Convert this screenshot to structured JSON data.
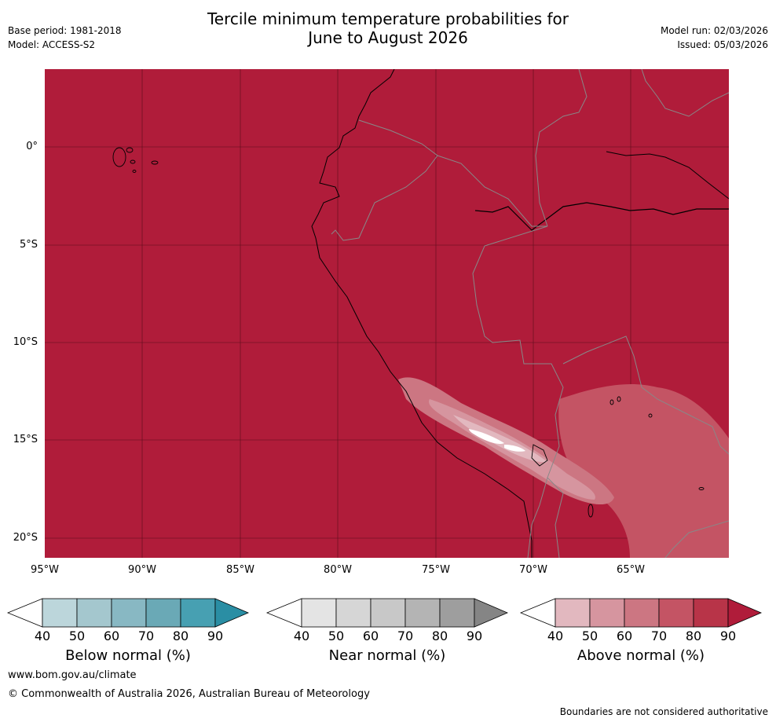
{
  "title_line1": "Tercile minimum temperature probabilities for",
  "title_line2": "June to August 2026",
  "meta_left": {
    "base_period": "Base period: 1981-2018",
    "model": "Model: ACCESS-S2"
  },
  "meta_right": {
    "model_run": "Model run: 02/03/2026",
    "issued": "Issued: 05/03/2026"
  },
  "map": {
    "lat_labels": [
      "0°",
      "5°S",
      "10°S",
      "15°S",
      "20°S"
    ],
    "lon_labels": [
      "95°W",
      "90°W",
      "85°W",
      "80°W",
      "75°W",
      "70°W",
      "65°W"
    ],
    "colors": {
      "ocean_land_fill": "#b01c3a",
      "coast": "#000000",
      "border": "#888888",
      "grid": "#5a0d1c"
    }
  },
  "colorbars": {
    "ticks": [
      "40",
      "50",
      "60",
      "70",
      "80",
      "90"
    ],
    "below": {
      "label": "Below normal (%)",
      "colors": [
        "#ffffff",
        "#bcd6db",
        "#a4c7ce",
        "#88b8c3",
        "#6aa9b6",
        "#47a0b2",
        "#2a8ea4"
      ]
    },
    "near": {
      "label": "Near normal (%)",
      "colors": [
        "#ffffff",
        "#e4e4e4",
        "#d6d6d6",
        "#c8c8c8",
        "#b4b4b4",
        "#9e9e9e",
        "#858585"
      ]
    },
    "above": {
      "label": "Above normal (%)",
      "colors": [
        "#ffffff",
        "#e2b8bf",
        "#d6959f",
        "#cc7682",
        "#c45464",
        "#b83448",
        "#b01c3a"
      ]
    }
  },
  "footer": {
    "url": "www.bom.gov.au/climate",
    "copyright": "© Commonwealth of Australia 2026, Australian Bureau of Meteorology",
    "disclaimer": "Boundaries are not considered authoritative"
  }
}
